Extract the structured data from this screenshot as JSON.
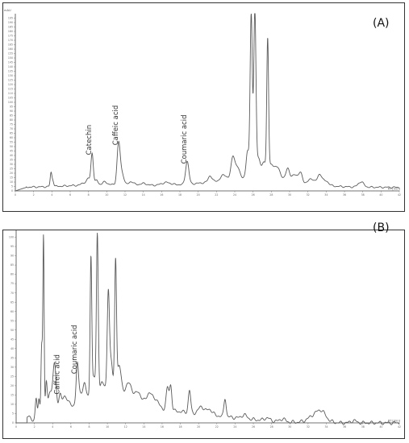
{
  "chart_data": [
    {
      "type": "line",
      "panel_label": "(A)",
      "ylabel": "mAU",
      "xlabel": "RT [min]",
      "xlim": [
        0,
        42
      ],
      "ylim": [
        0,
        200
      ],
      "x_ticks": [
        0,
        2,
        4,
        6,
        8,
        10,
        12,
        14,
        16,
        18,
        20,
        22,
        24,
        26,
        28,
        30,
        32,
        34,
        36,
        38,
        40,
        42
      ],
      "y_ticks": [
        0,
        5,
        10,
        15,
        20,
        25,
        30,
        35,
        40,
        45,
        50,
        55,
        60,
        65,
        70,
        75,
        80,
        85,
        90,
        95,
        100,
        105,
        110,
        115,
        120,
        125,
        130,
        135,
        140,
        145,
        150,
        155,
        160,
        165,
        170,
        175,
        180,
        185,
        190,
        195
      ],
      "baseline": 4,
      "peaks": [
        {
          "x": 3.9,
          "y": 15,
          "w": 0.09
        },
        {
          "x": 4.1,
          "y": 7,
          "w": 0.1
        },
        {
          "x": 7.6,
          "y": 3,
          "w": 0.3
        },
        {
          "x": 8.0,
          "y": 6,
          "w": 0.15
        },
        {
          "x": 8.4,
          "y": 36,
          "w": 0.13
        },
        {
          "x": 8.9,
          "y": 5,
          "w": 0.15
        },
        {
          "x": 9.8,
          "y": 3,
          "w": 0.25
        },
        {
          "x": 11.3,
          "y": 47,
          "w": 0.17
        },
        {
          "x": 11.7,
          "y": 12,
          "w": 0.2
        },
        {
          "x": 12.7,
          "y": 4,
          "w": 0.25
        },
        {
          "x": 14.0,
          "y": 2,
          "w": 0.4
        },
        {
          "x": 16.5,
          "y": 3,
          "w": 0.5
        },
        {
          "x": 18.8,
          "y": 26,
          "w": 0.18
        },
        {
          "x": 21.3,
          "y": 7,
          "w": 0.2
        },
        {
          "x": 22.8,
          "y": 6,
          "w": 0.3
        },
        {
          "x": 23.8,
          "y": 25,
          "w": 0.2
        },
        {
          "x": 24.3,
          "y": 12,
          "w": 0.25
        },
        {
          "x": 25.4,
          "y": 30,
          "w": 0.15
        },
        {
          "x": 25.8,
          "y": 185,
          "w": 0.12
        },
        {
          "x": 26.2,
          "y": 188,
          "w": 0.12
        },
        {
          "x": 26.6,
          "y": 22,
          "w": 0.2
        },
        {
          "x": 27.2,
          "y": 18,
          "w": 0.2
        },
        {
          "x": 27.6,
          "y": 150,
          "w": 0.1
        },
        {
          "x": 28.0,
          "y": 15,
          "w": 0.3
        },
        {
          "x": 28.7,
          "y": 12,
          "w": 0.3
        },
        {
          "x": 29.8,
          "y": 14,
          "w": 0.2
        },
        {
          "x": 30.6,
          "y": 8,
          "w": 0.3
        },
        {
          "x": 31.2,
          "y": 10,
          "w": 0.2
        },
        {
          "x": 32.4,
          "y": 6,
          "w": 0.3
        },
        {
          "x": 33.3,
          "y": 12,
          "w": 0.25
        },
        {
          "x": 34.0,
          "y": 5,
          "w": 0.3
        },
        {
          "x": 37.8,
          "y": 6,
          "w": 0.3
        }
      ],
      "humps": [
        {
          "x": 26.5,
          "y": 10,
          "w": 4.0
        },
        {
          "x": 18.0,
          "y": 2,
          "w": 8.0
        },
        {
          "x": 9.0,
          "y": 2,
          "w": 3.0
        }
      ],
      "annotations": [
        {
          "label": "Catechin",
          "x": 8.4,
          "y": 36
        },
        {
          "label": "Caffeic acid",
          "x": 11.3,
          "y": 47
        },
        {
          "label": "Coumaric acid",
          "x": 18.8,
          "y": 26
        }
      ]
    },
    {
      "type": "line",
      "panel_label": "(B)",
      "ylabel": "mAU",
      "xlabel": "RT [min]",
      "xlim": [
        0,
        42
      ],
      "ylim": [
        0,
        105
      ],
      "x_ticks": [
        0,
        2,
        4,
        6,
        8,
        10,
        12,
        14,
        16,
        18,
        20,
        22,
        24,
        26,
        28,
        30,
        32,
        34,
        36,
        38,
        40,
        42
      ],
      "y_ticks": [
        0,
        5,
        10,
        15,
        20,
        25,
        30,
        35,
        40,
        45,
        50,
        55,
        60,
        65,
        70,
        75,
        80,
        85,
        90,
        95,
        100,
        105
      ],
      "baseline": 0,
      "peaks": [
        {
          "x": 1.4,
          "y": 4,
          "w": 0.2
        },
        {
          "x": 2.2,
          "y": 13,
          "w": 0.1
        },
        {
          "x": 2.5,
          "y": 12,
          "w": 0.1
        },
        {
          "x": 2.8,
          "y": 40,
          "w": 0.08
        },
        {
          "x": 3.0,
          "y": 98,
          "w": 0.07
        },
        {
          "x": 3.3,
          "y": 20,
          "w": 0.1
        },
        {
          "x": 3.7,
          "y": 14,
          "w": 0.2
        },
        {
          "x": 4.2,
          "y": 30,
          "w": 0.18
        },
        {
          "x": 4.8,
          "y": 11,
          "w": 0.15
        },
        {
          "x": 5.2,
          "y": 8,
          "w": 0.2
        },
        {
          "x": 5.7,
          "y": 6,
          "w": 0.25
        },
        {
          "x": 6.7,
          "y": 22,
          "w": 0.13
        },
        {
          "x": 7.0,
          "y": 5,
          "w": 0.2
        },
        {
          "x": 7.5,
          "y": 10,
          "w": 0.15
        },
        {
          "x": 8.2,
          "y": 74,
          "w": 0.09
        },
        {
          "x": 8.5,
          "y": 10,
          "w": 0.15
        },
        {
          "x": 8.9,
          "y": 85,
          "w": 0.1
        },
        {
          "x": 9.4,
          "y": 5,
          "w": 0.15
        },
        {
          "x": 10.1,
          "y": 52,
          "w": 0.12
        },
        {
          "x": 10.4,
          "y": 15,
          "w": 0.15
        },
        {
          "x": 10.9,
          "y": 70,
          "w": 0.1
        },
        {
          "x": 11.3,
          "y": 13,
          "w": 0.2
        },
        {
          "x": 12.4,
          "y": 6,
          "w": 0.3
        },
        {
          "x": 13.4,
          "y": 4,
          "w": 0.25
        },
        {
          "x": 14.6,
          "y": 6,
          "w": 0.3
        },
        {
          "x": 15.3,
          "y": 4,
          "w": 0.3
        },
        {
          "x": 16.6,
          "y": 12,
          "w": 0.15
        },
        {
          "x": 16.95,
          "y": 13,
          "w": 0.12
        },
        {
          "x": 19.0,
          "y": 12,
          "w": 0.13
        },
        {
          "x": 20.3,
          "y": 4,
          "w": 0.3
        },
        {
          "x": 21.2,
          "y": 3,
          "w": 0.3
        },
        {
          "x": 22.9,
          "y": 10,
          "w": 0.12
        },
        {
          "x": 25.0,
          "y": 2,
          "w": 0.3
        },
        {
          "x": 27.5,
          "y": 1.5,
          "w": 0.3
        },
        {
          "x": 29.2,
          "y": 1.5,
          "w": 0.3
        },
        {
          "x": 33.5,
          "y": 2.5,
          "w": 0.4
        },
        {
          "x": 37.0,
          "y": 1.2,
          "w": 0.3
        }
      ],
      "humps": [
        {
          "x": 10.0,
          "y": 17,
          "w": 3.0
        },
        {
          "x": 16.5,
          "y": 5,
          "w": 4.0
        },
        {
          "x": 23.0,
          "y": 2,
          "w": 4.0
        },
        {
          "x": 33.0,
          "y": 5,
          "w": 0.8
        }
      ],
      "annotations": [
        {
          "label": "Caffeic acid",
          "x": 4.8,
          "y": 11
        },
        {
          "label": "Coumaric acid",
          "x": 6.7,
          "y": 22
        }
      ]
    }
  ]
}
